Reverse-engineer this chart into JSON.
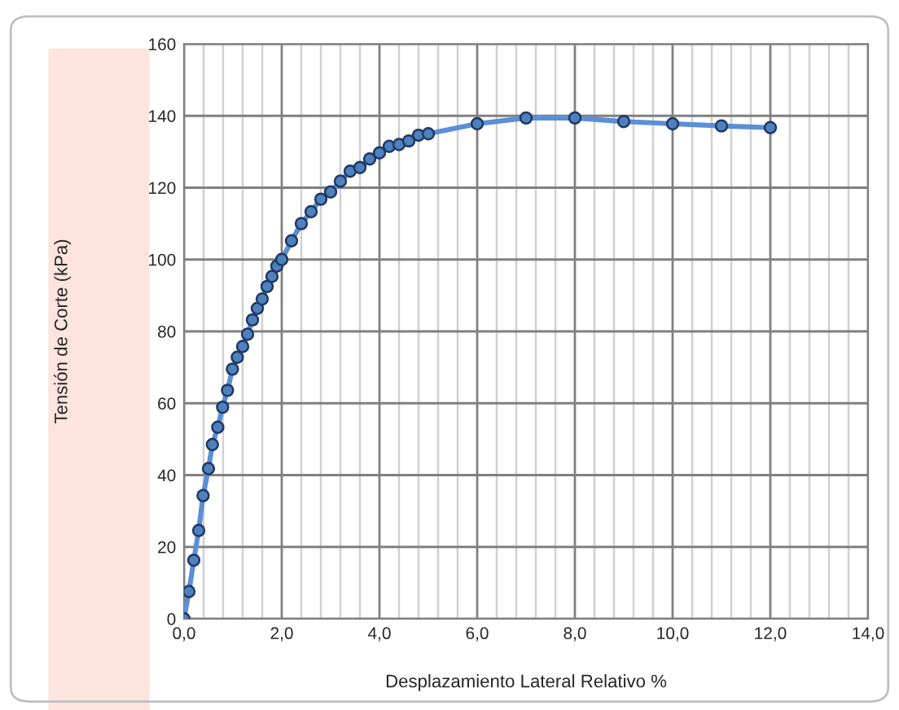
{
  "chart_data": {
    "type": "line",
    "xlabel": "Desplazamiento Lateral Relativo %",
    "ylabel": "Tensión de Corte (kPa)",
    "x": [
      0,
      0.1,
      0.2,
      0.3,
      0.39,
      0.5,
      0.58,
      0.69,
      0.79,
      0.89,
      0.99,
      1.09,
      1.2,
      1.3,
      1.4,
      1.5,
      1.6,
      1.7,
      1.8,
      1.9,
      2.0,
      2.2,
      2.4,
      2.6,
      2.8,
      3.0,
      3.2,
      3.4,
      3.6,
      3.8,
      4.0,
      4.2,
      4.4,
      4.6,
      4.8,
      5.0,
      6,
      7,
      8,
      9,
      10,
      11,
      12
    ],
    "series": [
      {
        "color": "#5b8fd6",
        "values": [
          0,
          7.6,
          16.3,
          24.6,
          34.3,
          41.8,
          48.5,
          53.3,
          58.9,
          63.6,
          69.5,
          72.8,
          75.8,
          79.2,
          83.2,
          86.4,
          89,
          92.5,
          95.3,
          98.2,
          100,
          105.2,
          110,
          113.3,
          116.8,
          118.8,
          121.8,
          124.6,
          125.6,
          128,
          129.7,
          131.5,
          132,
          133,
          134.6,
          135,
          137.8,
          139.4,
          139.4,
          138.4,
          137.8,
          137.2,
          136.7
        ]
      }
    ],
    "xlim": [
      0,
      14
    ],
    "ylim": [
      0,
      160
    ],
    "xticks": [
      {
        "value": 0,
        "label": "0,0"
      },
      {
        "value": 2,
        "label": "2,0"
      },
      {
        "value": 4,
        "label": "4,0"
      },
      {
        "value": 6,
        "label": "6,0"
      },
      {
        "value": 8,
        "label": "8,0"
      },
      {
        "value": 10,
        "label": "10,0"
      },
      {
        "value": 12,
        "label": "12,0"
      },
      {
        "value": 14,
        "label": "14,0"
      }
    ],
    "yticks": [
      0,
      20,
      40,
      60,
      80,
      100,
      120,
      140,
      160
    ],
    "grid": true,
    "marker": "circle",
    "line_style": "solid"
  }
}
